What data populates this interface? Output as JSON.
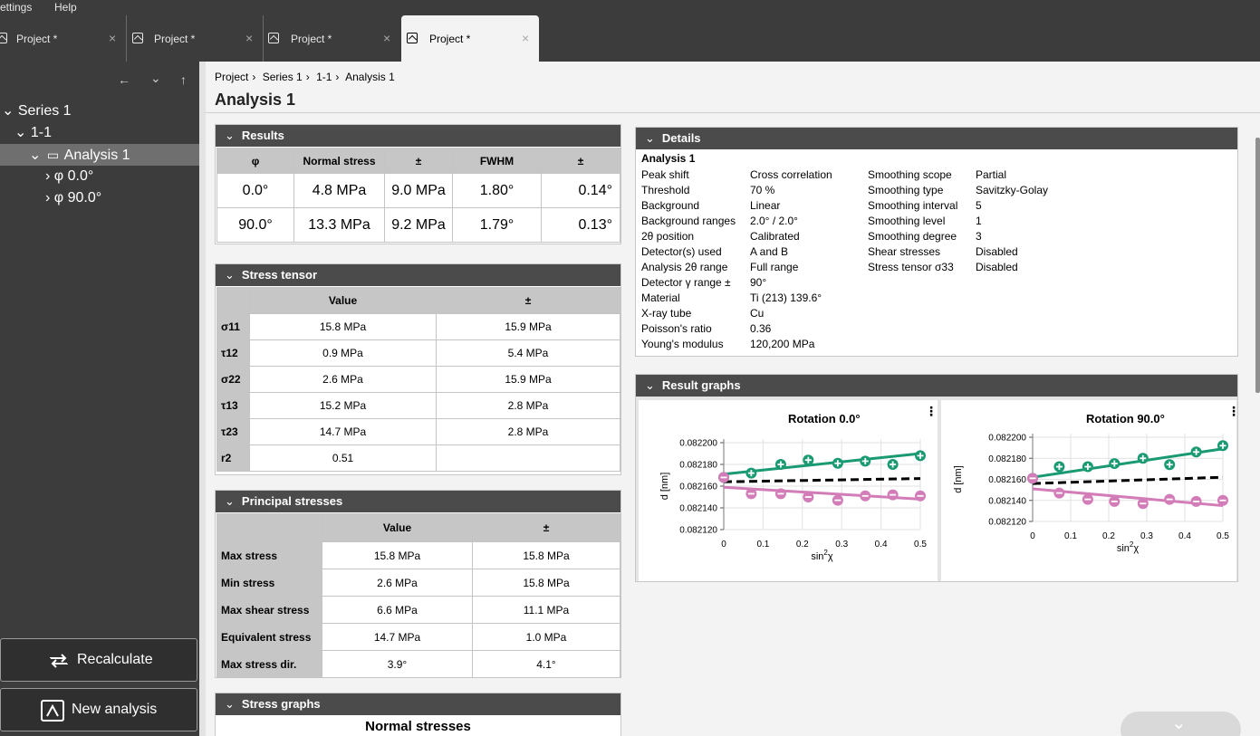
{
  "menu": {
    "settings": "Settings",
    "help": "Help"
  },
  "tabs": [
    {
      "label": "Project *",
      "close": "×"
    },
    {
      "label": "Project *",
      "close": "×"
    },
    {
      "label": "Project *",
      "close": "×"
    },
    {
      "label": "Project *",
      "close": "×"
    }
  ],
  "nav": {
    "back": "←",
    "down": "⌄",
    "up": "↑"
  },
  "tree": {
    "series": "Series 1",
    "sample": "1-1",
    "analysis": "Analysis 1",
    "phi0": "φ 0.0°",
    "phi90": "φ 90.0°"
  },
  "buttons": {
    "recalculate": "Recalculate",
    "new_analysis": "New analysis"
  },
  "breadcrumb": [
    "Project",
    "Series 1",
    "1-1",
    "Analysis 1"
  ],
  "page_title": "Analysis 1",
  "results": {
    "title": "Results",
    "headers": [
      "φ",
      "Normal stress",
      "±",
      "FWHM",
      "±"
    ],
    "rows": [
      [
        "0.0°",
        "4.8 MPa",
        "9.0 MPa",
        "1.80°",
        "0.14°"
      ],
      [
        "90.0°",
        "13.3 MPa",
        "9.2 MPa",
        "1.79°",
        "0.13°"
      ]
    ]
  },
  "stress_tensor": {
    "title": "Stress tensor",
    "headers": [
      "",
      "Value",
      "±"
    ],
    "rows": [
      [
        "σ11",
        "15.8 MPa",
        "15.9 MPa"
      ],
      [
        "τ12",
        "0.9 MPa",
        "5.4 MPa"
      ],
      [
        "σ22",
        "2.6 MPa",
        "15.9 MPa"
      ],
      [
        "τ13",
        "15.2 MPa",
        "2.8 MPa"
      ],
      [
        "τ23",
        "14.7 MPa",
        "2.8 MPa"
      ],
      [
        "r2",
        "0.51",
        ""
      ]
    ]
  },
  "principal": {
    "title": "Principal stresses",
    "headers": [
      "",
      "Value",
      "±"
    ],
    "rows": [
      [
        "Max stress",
        "15.8 MPa",
        "15.8 MPa"
      ],
      [
        "Min stress",
        "2.6 MPa",
        "15.8 MPa"
      ],
      [
        "Max shear stress",
        "6.6 MPa",
        "11.1 MPa"
      ],
      [
        "Equivalent stress",
        "14.7 MPa",
        "1.0 MPa"
      ],
      [
        "Max stress dir.",
        "3.9°",
        "4.1°"
      ]
    ]
  },
  "stress_graphs": {
    "title": "Stress graphs",
    "subtitle": "Normal stresses"
  },
  "details": {
    "title": "Details",
    "heading": "Analysis 1",
    "left_labels": [
      "Peak shift",
      "Threshold",
      "Background",
      "Background ranges",
      "2θ position",
      "Detector(s) used",
      "Analysis 2θ range",
      "Detector γ range ±",
      "Material",
      "X-ray tube",
      "Poisson's ratio",
      "Young's modulus"
    ],
    "left_values": [
      "Cross correlation",
      "70 %",
      "Linear",
      "2.0° / 2.0°",
      "Calibrated",
      "A and B",
      "Full range",
      "90°",
      "Ti (213) 139.6°",
      "Cu",
      "0.36",
      "120,200 MPa"
    ],
    "right_labels": [
      "Smoothing scope",
      "Smoothing type",
      "Smoothing interval",
      "Smoothing level",
      "Smoothing degree",
      "Shear stresses",
      "Stress tensor σ33"
    ],
    "right_values": [
      "Partial",
      "Savitzky-Golay",
      "5",
      "1",
      "3",
      "Disabled",
      "Disabled"
    ]
  },
  "result_graphs": {
    "title": "Result graphs",
    "more": "⋮",
    "xlabel_base": "sin",
    "xlabel_sup": "2",
    "xlabel_tail": "χ",
    "ylabel": "d [nm]"
  },
  "chart_data": [
    {
      "type": "scatter",
      "title": "Rotation 0.0°",
      "xlabel": "sin²χ",
      "ylabel": "d [nm]",
      "xlim": [
        0,
        0.5
      ],
      "ylim": [
        0.08212,
        0.0822
      ],
      "x_ticks": [
        "0",
        "0.1",
        "0.2",
        "0.3",
        "0.4",
        "0.5"
      ],
      "y_ticks": [
        "0.082200",
        "0.082180",
        "0.082160",
        "0.082140",
        "0.082120"
      ],
      "grid": true,
      "series": [
        {
          "x": [
            0,
            0.07,
            0.145,
            0.215,
            0.29,
            0.36,
            0.43,
            0.5
          ],
          "y": [
            0.082168,
            0.082172,
            0.08218,
            0.082184,
            0.082181,
            0.082183,
            0.08218,
            0.082188
          ],
          "color": "#1a9a72",
          "marker": "plus"
        },
        {
          "x": [
            0,
            0.07,
            0.145,
            0.215,
            0.29,
            0.36,
            0.43,
            0.5
          ],
          "y": [
            0.082168,
            0.082153,
            0.082153,
            0.08215,
            0.082147,
            0.082151,
            0.082152,
            0.082151
          ],
          "color": "#d27cb8",
          "marker": "minus"
        }
      ],
      "fit_lines": [
        {
          "y0": 0.082171,
          "y1": 0.08219,
          "color": "#1a9a72",
          "dash": false
        },
        {
          "y0": 0.082164,
          "y1": 0.082167,
          "color": "#000000",
          "dash": true
        },
        {
          "y0": 0.082159,
          "y1": 0.082148,
          "color": "#d27cb8",
          "dash": false
        }
      ]
    },
    {
      "type": "scatter",
      "title": "Rotation 90.0°",
      "xlabel": "sin²χ",
      "ylabel": "d [nm]",
      "xlim": [
        0,
        0.5
      ],
      "ylim": [
        0.08212,
        0.0822
      ],
      "x_ticks": [
        "0",
        "0.1",
        "0.2",
        "0.3",
        "0.4",
        "0.5"
      ],
      "y_ticks": [
        "0.082200",
        "0.082180",
        "0.082160",
        "0.082140",
        "0.082120"
      ],
      "grid": true,
      "series": [
        {
          "x": [
            0,
            0.07,
            0.145,
            0.215,
            0.29,
            0.36,
            0.43,
            0.5
          ],
          "y": [
            0.082161,
            0.082172,
            0.082172,
            0.082175,
            0.08218,
            0.082174,
            0.082186,
            0.082192
          ],
          "color": "#1a9a72",
          "marker": "plus"
        },
        {
          "x": [
            0,
            0.07,
            0.145,
            0.215,
            0.29,
            0.36,
            0.43,
            0.5
          ],
          "y": [
            0.082161,
            0.082147,
            0.082141,
            0.082139,
            0.082137,
            0.082141,
            0.082139,
            0.08214
          ],
          "color": "#d27cb8",
          "marker": "minus"
        }
      ],
      "fit_lines": [
        {
          "y0": 0.082162,
          "y1": 0.082189,
          "color": "#1a9a72",
          "dash": false
        },
        {
          "y0": 0.082156,
          "y1": 0.082162,
          "color": "#000000",
          "dash": true
        },
        {
          "y0": 0.082151,
          "y1": 0.082135,
          "color": "#d27cb8",
          "dash": false
        }
      ]
    }
  ]
}
